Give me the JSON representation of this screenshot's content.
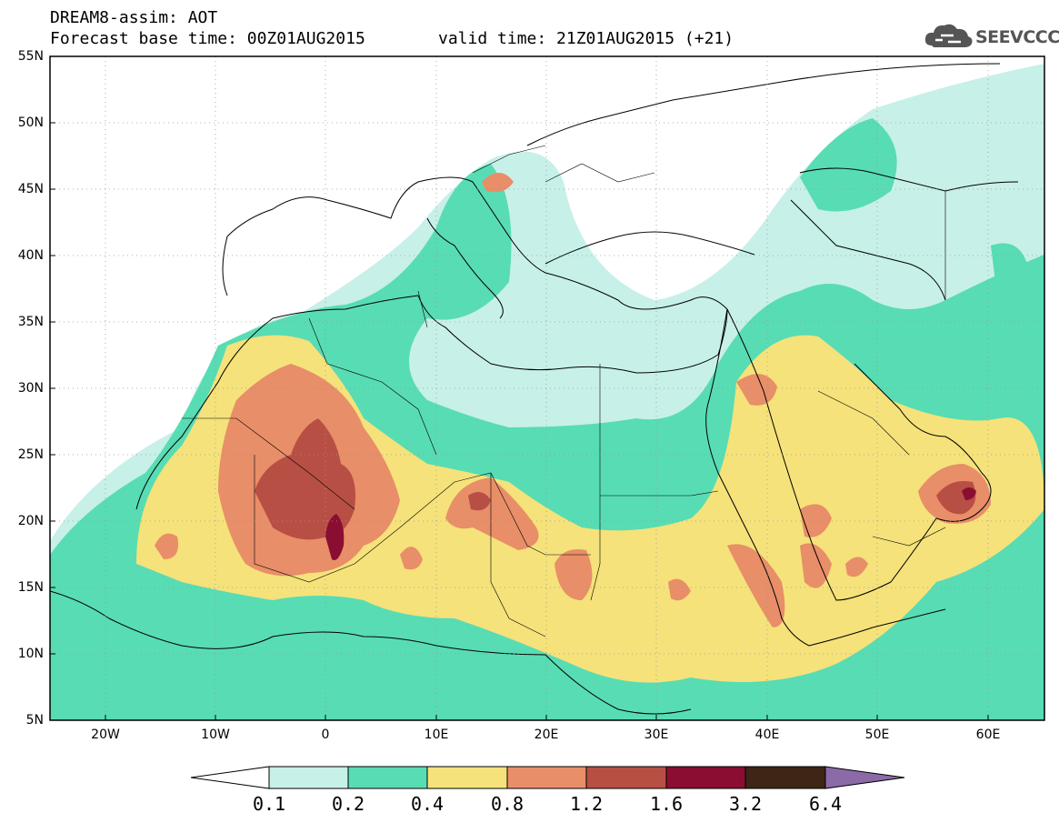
{
  "title": {
    "line1": "DREAM8-assim: AOT",
    "line2": "Forecast base time: 00Z01AUG2015",
    "valid": "valid time: 21Z01AUG2015 (+21)"
  },
  "logo": {
    "text": "SEEVCCC",
    "icon": "cloud-icon"
  },
  "axes": {
    "lat_labels": [
      "55N",
      "50N",
      "45N",
      "40N",
      "35N",
      "30N",
      "25N",
      "20N",
      "15N",
      "10N",
      "5N"
    ],
    "lon_labels": [
      "20W",
      "10W",
      "0",
      "10E",
      "20E",
      "30E",
      "40E",
      "50E",
      "60E"
    ],
    "lon_range": [
      -25,
      65
    ],
    "lat_range": [
      5,
      55
    ]
  },
  "colorbar": {
    "labels": [
      "0.1",
      "0.2",
      "0.4",
      "0.8",
      "1.2",
      "1.6",
      "3.2",
      "6.4"
    ],
    "colors": [
      "#c7f0e8",
      "#58dcb4",
      "#f5e27a",
      "#e88e68",
      "#b84f44",
      "#8a0e32",
      "#3e2516",
      "#8b6aa8"
    ],
    "under_color": "#ffffff"
  }
}
